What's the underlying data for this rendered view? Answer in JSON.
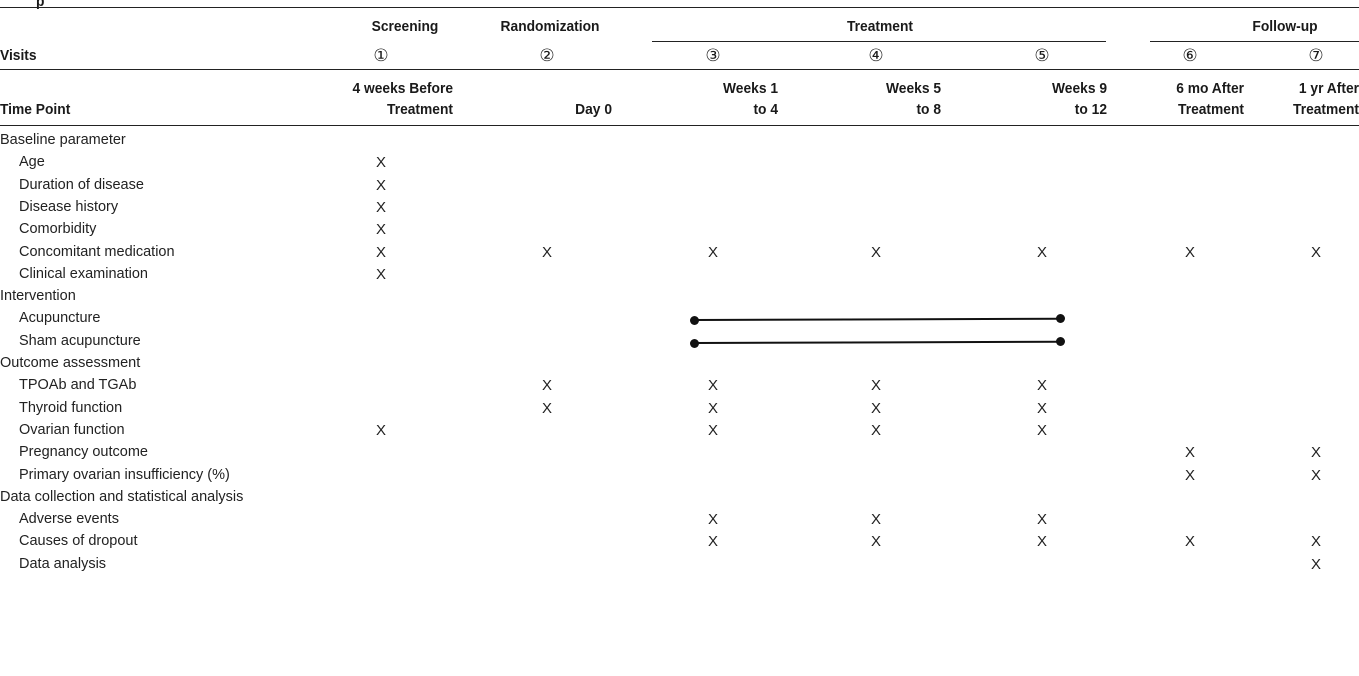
{
  "title_fragment": "p",
  "header": {
    "phases": {
      "screening": "Screening",
      "randomization": "Randomization",
      "treatment": "Treatment",
      "followup": "Follow-up"
    },
    "visits_label": "Visits",
    "visit_numbers": [
      "①",
      "②",
      "③",
      "④",
      "⑤",
      "⑥",
      "⑦"
    ],
    "timepoint_label": "Time Point",
    "timepoints": [
      [
        "4 weeks Before",
        "Treatment"
      ],
      [
        "",
        "Day 0"
      ],
      [
        "Weeks 1",
        "to 4"
      ],
      [
        "Weeks 5",
        "to 8"
      ],
      [
        "Weeks 9",
        "to 12"
      ],
      [
        "6 mo After",
        "Treatment"
      ],
      [
        "1 yr After",
        "Treatment"
      ]
    ]
  },
  "rows": [
    {
      "label": "Baseline parameter",
      "section": true,
      "marks": [
        "",
        "",
        "",
        "",
        "",
        "",
        ""
      ]
    },
    {
      "label": "Age",
      "section": false,
      "marks": [
        "X",
        "",
        "",
        "",
        "",
        "",
        ""
      ]
    },
    {
      "label": "Duration of disease",
      "section": false,
      "marks": [
        "X",
        "",
        "",
        "",
        "",
        "",
        ""
      ]
    },
    {
      "label": "Disease history",
      "section": false,
      "marks": [
        "X",
        "",
        "",
        "",
        "",
        "",
        ""
      ]
    },
    {
      "label": "Comorbidity",
      "section": false,
      "marks": [
        "X",
        "",
        "",
        "",
        "",
        "",
        ""
      ]
    },
    {
      "label": "Concomitant medication",
      "section": false,
      "marks": [
        "X",
        "X",
        "X",
        "X",
        "X",
        "X",
        "X"
      ]
    },
    {
      "label": "Clinical examination",
      "section": false,
      "marks": [
        "X",
        "",
        "",
        "",
        "",
        "",
        ""
      ]
    },
    {
      "label": "Intervention",
      "section": true,
      "marks": [
        "",
        "",
        "",
        "",
        "",
        "",
        ""
      ]
    },
    {
      "label": "Acupuncture",
      "section": false,
      "marks": [
        "",
        "",
        "",
        "",
        "",
        "",
        ""
      ],
      "span": "treatment"
    },
    {
      "label": "Sham acupuncture",
      "section": false,
      "marks": [
        "",
        "",
        "",
        "",
        "",
        "",
        ""
      ],
      "span": "treatment"
    },
    {
      "label": "Outcome assessment",
      "section": true,
      "marks": [
        "",
        "",
        "",
        "",
        "",
        "",
        ""
      ]
    },
    {
      "label": "TPOAb and TGAb",
      "section": false,
      "marks": [
        "",
        "X",
        "X",
        "X",
        "X",
        "",
        ""
      ]
    },
    {
      "label": "Thyroid function",
      "section": false,
      "marks": [
        "",
        "X",
        "X",
        "X",
        "X",
        "",
        ""
      ]
    },
    {
      "label": "Ovarian function",
      "section": false,
      "marks": [
        "X",
        "",
        "X",
        "X",
        "X",
        "",
        ""
      ]
    },
    {
      "label": "Pregnancy outcome",
      "section": false,
      "marks": [
        "",
        "",
        "",
        "",
        "",
        "X",
        "X"
      ]
    },
    {
      "label": "Primary ovarian insufficiency (%)",
      "section": false,
      "marks": [
        "",
        "",
        "",
        "",
        "",
        "X",
        "X"
      ]
    },
    {
      "label": "Data collection and statistical analysis",
      "section": true,
      "marks": [
        "",
        "",
        "",
        "",
        "",
        "",
        ""
      ]
    },
    {
      "label": "Adverse events",
      "section": false,
      "marks": [
        "",
        "",
        "X",
        "X",
        "X",
        "",
        ""
      ]
    },
    {
      "label": "Causes of dropout",
      "section": false,
      "marks": [
        "",
        "",
        "X",
        "X",
        "X",
        "X",
        "X"
      ]
    },
    {
      "label": "Data analysis",
      "section": false,
      "marks": [
        "",
        "",
        "",
        "",
        "",
        "",
        "X"
      ]
    }
  ]
}
